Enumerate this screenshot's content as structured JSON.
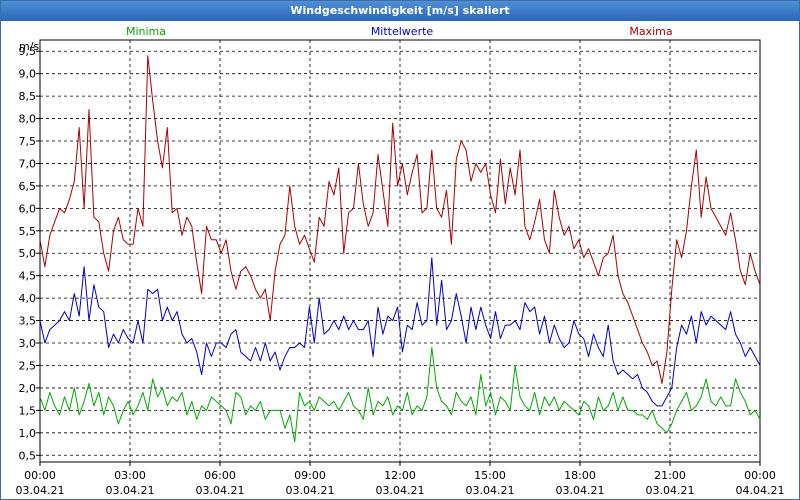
{
  "title": "Windgeschwindigkeit [m/s] skaliert",
  "chart_data": {
    "type": "line",
    "ylabel": "m/s",
    "ylim": [
      0.35,
      9.75
    ],
    "yticks": [
      "0,5",
      "1,0",
      "1,5",
      "2,0",
      "2,5",
      "3,0",
      "3,5",
      "4,0",
      "4,5",
      "5,0",
      "5,5",
      "6,0",
      "6,5",
      "7,0",
      "7,5",
      "8,0",
      "8,5",
      "9,0",
      "9,5"
    ],
    "xlim": [
      0,
      24
    ],
    "xticks": [
      {
        "time": "00:00",
        "date": "03.04.21"
      },
      {
        "time": "03:00",
        "date": "03.04.21"
      },
      {
        "time": "06:00",
        "date": "03.04.21"
      },
      {
        "time": "09:00",
        "date": "03.04.21"
      },
      {
        "time": "12:00",
        "date": "03.04.21"
      },
      {
        "time": "15:00",
        "date": "03.04.21"
      },
      {
        "time": "18:00",
        "date": "03.04.21"
      },
      {
        "time": "21:00",
        "date": "03.04.21"
      },
      {
        "time": "00:00",
        "date": "04.04.21"
      }
    ],
    "grid": true,
    "series": [
      {
        "name": "Minima",
        "color": "#00aa00",
        "values": [
          1.8,
          1.5,
          1.9,
          1.6,
          1.4,
          1.8,
          1.5,
          2.0,
          1.4,
          1.7,
          2.1,
          1.6,
          1.9,
          1.4,
          1.8,
          1.6,
          1.2,
          1.5,
          1.7,
          1.4,
          1.6,
          1.9,
          1.5,
          2.2,
          1.8,
          2.0,
          1.6,
          1.8,
          1.7,
          1.9,
          1.4,
          1.7,
          1.3,
          1.6,
          1.5,
          1.8,
          1.7,
          1.6,
          1.5,
          1.2,
          1.9,
          1.8,
          1.4,
          1.6,
          1.5,
          1.7,
          1.3,
          1.5,
          1.5,
          1.5,
          1.1,
          1.4,
          0.8,
          1.9,
          1.6,
          1.7,
          1.5,
          1.8,
          1.7,
          1.6,
          1.7,
          1.5,
          1.7,
          1.9,
          1.6,
          1.5,
          1.3,
          2.0,
          1.4,
          1.7,
          1.6,
          1.8,
          1.4,
          1.6,
          1.5,
          1.9,
          1.4,
          1.6,
          1.5,
          1.8,
          2.9,
          2.0,
          1.7,
          1.6,
          1.4,
          1.9,
          1.7,
          1.6,
          1.8,
          1.4,
          2.3,
          1.6,
          1.9,
          1.4,
          1.8,
          1.7,
          1.5,
          2.5,
          1.8,
          1.6,
          1.5,
          1.9,
          1.4,
          1.8,
          1.6,
          1.8,
          1.5,
          1.7,
          1.6,
          1.5,
          1.4,
          1.7,
          1.6,
          1.3,
          1.8,
          1.5,
          1.6,
          1.9,
          1.5,
          1.8,
          1.5,
          1.5,
          1.4,
          1.4,
          1.3,
          1.5,
          1.2,
          1.1,
          1.0,
          1.2,
          1.5,
          1.7,
          1.9,
          1.5,
          1.6,
          1.8,
          2.2,
          1.7,
          1.6,
          1.8,
          1.6,
          1.6,
          2.2,
          1.9,
          1.7,
          1.4,
          1.5,
          1.3
        ]
      },
      {
        "name": "Mittelwerte",
        "color": "#0000cc",
        "values": [
          3.5,
          3.0,
          3.3,
          3.4,
          3.5,
          3.7,
          3.5,
          4.1,
          3.6,
          4.7,
          3.5,
          4.3,
          3.8,
          3.7,
          2.9,
          3.2,
          3.0,
          3.3,
          3.1,
          3.0,
          3.5,
          3.0,
          4.2,
          4.1,
          4.2,
          3.5,
          3.8,
          3.5,
          3.7,
          3.2,
          3.0,
          3.1,
          2.8,
          2.3,
          3.0,
          2.7,
          3.0,
          3.0,
          2.9,
          3.2,
          3.3,
          2.8,
          2.7,
          2.6,
          2.9,
          2.6,
          3.0,
          2.6,
          2.8,
          2.4,
          2.7,
          2.9,
          2.9,
          3.0,
          2.9,
          3.8,
          3.0,
          4.0,
          3.2,
          3.3,
          3.5,
          3.3,
          3.6,
          3.3,
          3.5,
          3.3,
          3.3,
          3.5,
          2.7,
          3.8,
          3.2,
          3.6,
          3.5,
          3.8,
          2.8,
          3.4,
          3.3,
          3.9,
          3.4,
          3.5,
          4.9,
          3.4,
          4.4,
          3.3,
          3.5,
          4.1,
          3.6,
          3.0,
          3.8,
          3.3,
          3.8,
          3.4,
          3.1,
          3.7,
          3.1,
          3.4,
          3.4,
          3.5,
          3.3,
          3.9,
          3.7,
          3.8,
          3.2,
          3.6,
          3.0,
          3.4,
          3.1,
          2.9,
          3.0,
          3.5,
          3.2,
          3.1,
          2.7,
          3.2,
          2.9,
          2.7,
          3.4,
          2.6,
          2.3,
          2.4,
          2.3,
          2.2,
          2.3,
          2.0,
          1.9,
          1.7,
          1.6,
          1.6,
          1.8,
          2.0,
          2.9,
          3.4,
          3.2,
          3.6,
          3.0,
          3.7,
          3.4,
          3.6,
          3.5,
          3.4,
          3.3,
          3.7,
          3.2,
          3.0,
          2.7,
          2.9,
          2.7,
          2.5
        ]
      },
      {
        "name": "Maxima",
        "color": "#aa0000",
        "values": [
          5.3,
          4.7,
          5.4,
          5.7,
          6.0,
          5.9,
          6.2,
          6.6,
          7.8,
          6.0,
          8.2,
          5.8,
          5.7,
          5.0,
          4.6,
          5.5,
          5.8,
          5.3,
          5.2,
          5.2,
          6.0,
          5.6,
          9.4,
          8.4,
          7.5,
          6.9,
          7.8,
          5.9,
          6.0,
          5.4,
          5.8,
          5.6,
          4.8,
          4.1,
          5.6,
          5.3,
          5.3,
          5.0,
          5.3,
          4.6,
          4.2,
          4.6,
          4.7,
          4.5,
          4.2,
          4.0,
          4.2,
          3.5,
          4.6,
          5.2,
          5.4,
          6.5,
          5.6,
          5.2,
          5.4,
          5.1,
          4.8,
          5.8,
          5.6,
          6.6,
          6.3,
          6.9,
          5.0,
          5.9,
          6.0,
          7.0,
          6.1,
          5.6,
          5.9,
          7.2,
          6.4,
          5.6,
          7.9,
          6.5,
          7.0,
          6.3,
          6.8,
          7.2,
          5.9,
          6.0,
          7.3,
          6.0,
          5.8,
          6.4,
          5.2,
          7.1,
          7.5,
          7.3,
          6.6,
          7.0,
          6.8,
          7.0,
          6.3,
          5.9,
          7.1,
          6.1,
          6.9,
          6.3,
          7.3,
          5.6,
          5.3,
          5.7,
          6.2,
          5.3,
          5.0,
          6.4,
          5.8,
          5.4,
          5.6,
          5.1,
          5.3,
          4.9,
          5.1,
          4.8,
          4.5,
          4.9,
          5.0,
          5.4,
          4.5,
          4.1,
          3.9,
          3.6,
          3.3,
          3.0,
          2.8,
          2.5,
          2.6,
          2.1,
          2.8,
          4.2,
          5.3,
          4.9,
          5.5,
          6.5,
          7.3,
          5.8,
          6.7,
          6.0,
          5.8,
          5.6,
          5.4,
          5.9,
          5.3,
          4.6,
          4.3,
          5.0,
          4.6,
          4.3
        ]
      }
    ]
  }
}
